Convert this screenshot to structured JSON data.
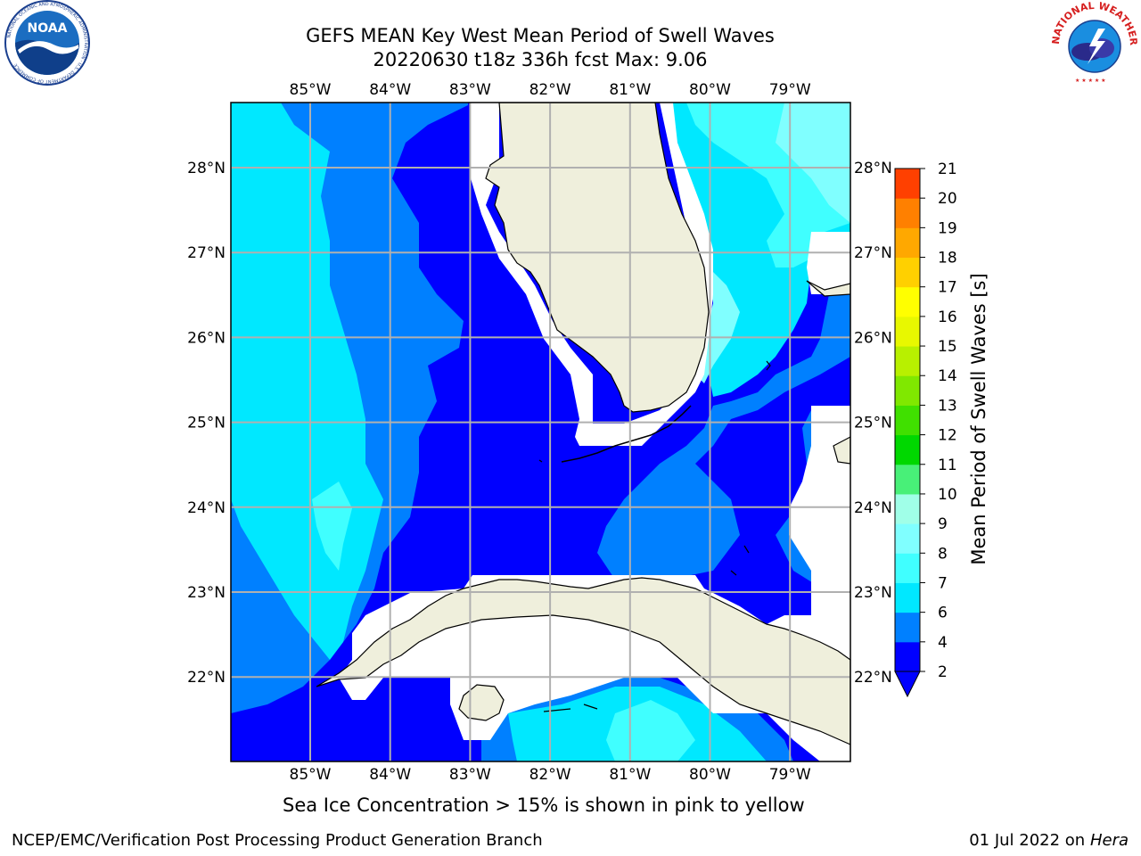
{
  "header": {
    "title_line1": "GEFS MEAN Key West Mean Period of Swell Waves",
    "title_line2": "20220630 t18z 336h fcst   Max: 9.06"
  },
  "logos": {
    "noaa_text": "NOAA",
    "noaa_ring_text": "NATIONAL OCEANIC AND ATMOSPHERIC ADMINISTRATION · U.S. DEPARTMENT OF COMMERCE",
    "nws_text": "NATIONAL WEATHER SERVICE"
  },
  "axes": {
    "lon_labels": [
      "85°W",
      "84°W",
      "83°W",
      "82°W",
      "81°W",
      "80°W",
      "79°W"
    ],
    "lat_labels": [
      "28°N",
      "27°N",
      "26°N",
      "25°N",
      "24°N",
      "23°N",
      "22°N"
    ]
  },
  "colorbar": {
    "label": "Mean Period of Swell Waves [s]",
    "ticks": [
      "2",
      "4",
      "6",
      "7",
      "8",
      "9",
      "10",
      "11",
      "12",
      "13",
      "14",
      "15",
      "16",
      "17",
      "18",
      "19",
      "20",
      "21"
    ],
    "colors": [
      "#0000ff",
      "#0080ff",
      "#00e8ff",
      "#40ffff",
      "#80ffff",
      "#a0ffe8",
      "#48f078",
      "#00d800",
      "#40e000",
      "#80e800",
      "#b8f000",
      "#e8f800",
      "#ffff00",
      "#ffd000",
      "#ffa800",
      "#ff8000",
      "#ff4000",
      "#ff1000",
      "#ff0000"
    ],
    "extend": "min"
  },
  "map": {
    "land_color": "#efefdc",
    "grid": true
  },
  "footer": {
    "note": "Sea Ice Concentration > 15% is shown in pink to yellow",
    "left": "NCEP/EMC/Verification Post Processing Product Generation Branch",
    "date": "01 Jul 2022 on ",
    "host": "Hera"
  }
}
